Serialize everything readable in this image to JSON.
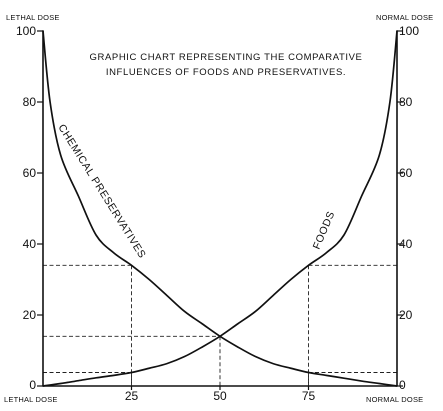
{
  "chart_data": {
    "type": "line",
    "title_lines": [
      "GRAPHIC CHART REPRESENTING THE COMPARATIVE",
      "INFLUENCES OF FOODS AND PRESERVATIVES."
    ],
    "corner_labels": {
      "top_left": "LETHAL DOSE",
      "top_right": "NORMAL DOSE",
      "bottom_left": "LETHAL DOSE",
      "bottom_right": "NORMAL DOSE"
    },
    "xlim": [
      0,
      100
    ],
    "ylim": [
      0,
      100
    ],
    "x_ticks": [
      {
        "value": 25,
        "label": "25"
      },
      {
        "value": 50,
        "label": "50"
      },
      {
        "value": 75,
        "label": "75"
      }
    ],
    "y_ticks": [
      {
        "value": 0,
        "label": "0"
      },
      {
        "value": 20,
        "label": "20"
      },
      {
        "value": 40,
        "label": "40"
      },
      {
        "value": 60,
        "label": "60"
      },
      {
        "value": 80,
        "label": "80"
      },
      {
        "value": 100,
        "label": "100"
      }
    ],
    "series": [
      {
        "name": "CHEMICAL PRESERVATIVES",
        "x": [
          0,
          2,
          5,
          10,
          15,
          20,
          25,
          30,
          35,
          40,
          45,
          50,
          55,
          60,
          65,
          70,
          75,
          80,
          85,
          90,
          95,
          100
        ],
        "y": [
          100,
          80,
          65,
          53.5,
          42.5,
          37.5,
          34,
          30,
          25.5,
          21,
          17.5,
          14,
          11,
          8.3,
          6.3,
          5,
          3.8,
          3,
          2.2,
          1.4,
          0.7,
          0
        ]
      },
      {
        "name": "FOODS",
        "x": [
          0,
          5,
          10,
          15,
          20,
          25,
          30,
          35,
          40,
          45,
          50,
          55,
          60,
          65,
          70,
          75,
          80,
          85,
          90,
          95,
          98,
          100
        ],
        "y": [
          0,
          0.7,
          1.5,
          2.3,
          3,
          3.8,
          5,
          6.3,
          8.3,
          11,
          14,
          17.5,
          21,
          25.5,
          30,
          34,
          37.5,
          42.5,
          53.5,
          65,
          80,
          100
        ]
      }
    ],
    "reference_lines": [
      {
        "x": 25,
        "y": 34,
        "from": "left"
      },
      {
        "x": 50,
        "y": 14,
        "from": "left"
      },
      {
        "x": 25,
        "y": 3.8,
        "from": "left"
      },
      {
        "x": 75,
        "y": 34,
        "from": "right"
      },
      {
        "x": 75,
        "y": 3.8,
        "from": "right"
      }
    ]
  }
}
